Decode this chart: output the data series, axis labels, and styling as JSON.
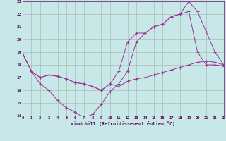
{
  "background_color": "#c8e8e8",
  "grid_color": "#aabbbb",
  "line_color": "#993399",
  "x_min": 0,
  "x_max": 23,
  "y_min": 14,
  "y_max": 23,
  "xlabel": "Windchill (Refroidissement éolien,°C)",
  "line1_x": [
    0,
    1,
    2,
    3,
    4,
    5,
    6,
    7,
    8,
    9,
    10,
    11,
    12,
    13,
    14,
    15,
    16,
    17,
    18,
    19,
    20,
    21,
    22,
    23
  ],
  "line1_y": [
    18.9,
    17.5,
    17.0,
    17.2,
    17.1,
    16.9,
    16.6,
    16.5,
    16.3,
    16.0,
    16.5,
    17.5,
    19.8,
    20.5,
    20.5,
    21.0,
    21.2,
    21.8,
    22.0,
    22.2,
    19.0,
    18.0,
    18.0,
    17.9
  ],
  "line2_x": [
    0,
    1,
    2,
    3,
    4,
    5,
    6,
    7,
    8,
    9,
    10,
    11,
    12,
    13,
    14,
    15,
    16,
    17,
    18,
    19,
    20,
    21,
    22,
    23
  ],
  "line2_y": [
    18.9,
    17.5,
    16.5,
    16.0,
    15.2,
    14.6,
    14.3,
    13.8,
    14.1,
    14.9,
    15.9,
    16.5,
    17.5,
    19.8,
    20.5,
    21.0,
    21.2,
    21.8,
    22.0,
    23.0,
    22.2,
    20.6,
    19.0,
    18.0
  ],
  "line3_x": [
    0,
    1,
    2,
    3,
    4,
    5,
    6,
    7,
    8,
    9,
    10,
    11,
    12,
    13,
    14,
    15,
    16,
    17,
    18,
    19,
    20,
    21,
    22,
    23
  ],
  "line3_y": [
    18.9,
    17.5,
    17.0,
    17.2,
    17.1,
    16.9,
    16.6,
    16.5,
    16.3,
    16.0,
    16.5,
    16.3,
    16.7,
    16.9,
    17.0,
    17.2,
    17.4,
    17.6,
    17.8,
    18.0,
    18.2,
    18.3,
    18.2,
    18.0
  ]
}
